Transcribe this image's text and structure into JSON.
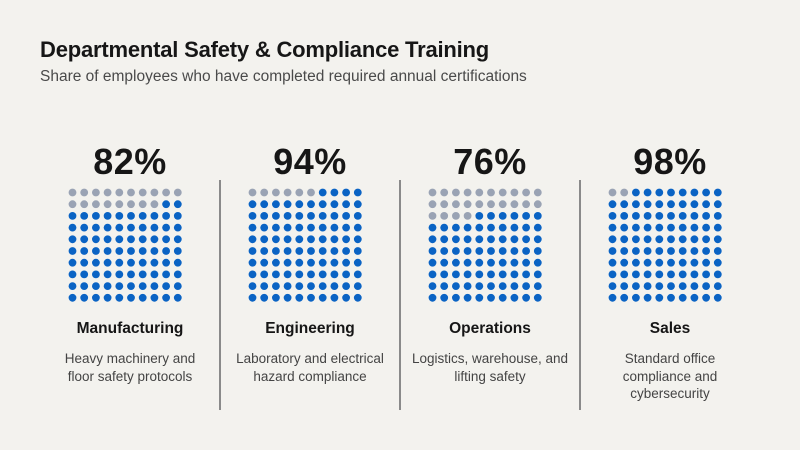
{
  "title": "Departmental Safety & Compliance Training",
  "subtitle": "Share of employees who have completed required annual certifications",
  "colors": {
    "completed": "#0a63c4",
    "remaining": "#9aa3b4",
    "background": "#f3f2ee"
  },
  "chart_data": {
    "type": "waffle",
    "grid": [
      10,
      10
    ],
    "series": [
      {
        "name": "Manufacturing",
        "value": 82,
        "label": "82%",
        "description": "Heavy machinery and floor safety protocols"
      },
      {
        "name": "Engineering",
        "value": 94,
        "label": "94%",
        "description": "Laboratory and electrical hazard compliance"
      },
      {
        "name": "Operations",
        "value": 76,
        "label": "76%",
        "description": "Logistics, warehouse, and lifting safety"
      },
      {
        "name": "Sales",
        "value": 98,
        "label": "98%",
        "description": "Standard office compliance and cybersecurity"
      }
    ]
  }
}
